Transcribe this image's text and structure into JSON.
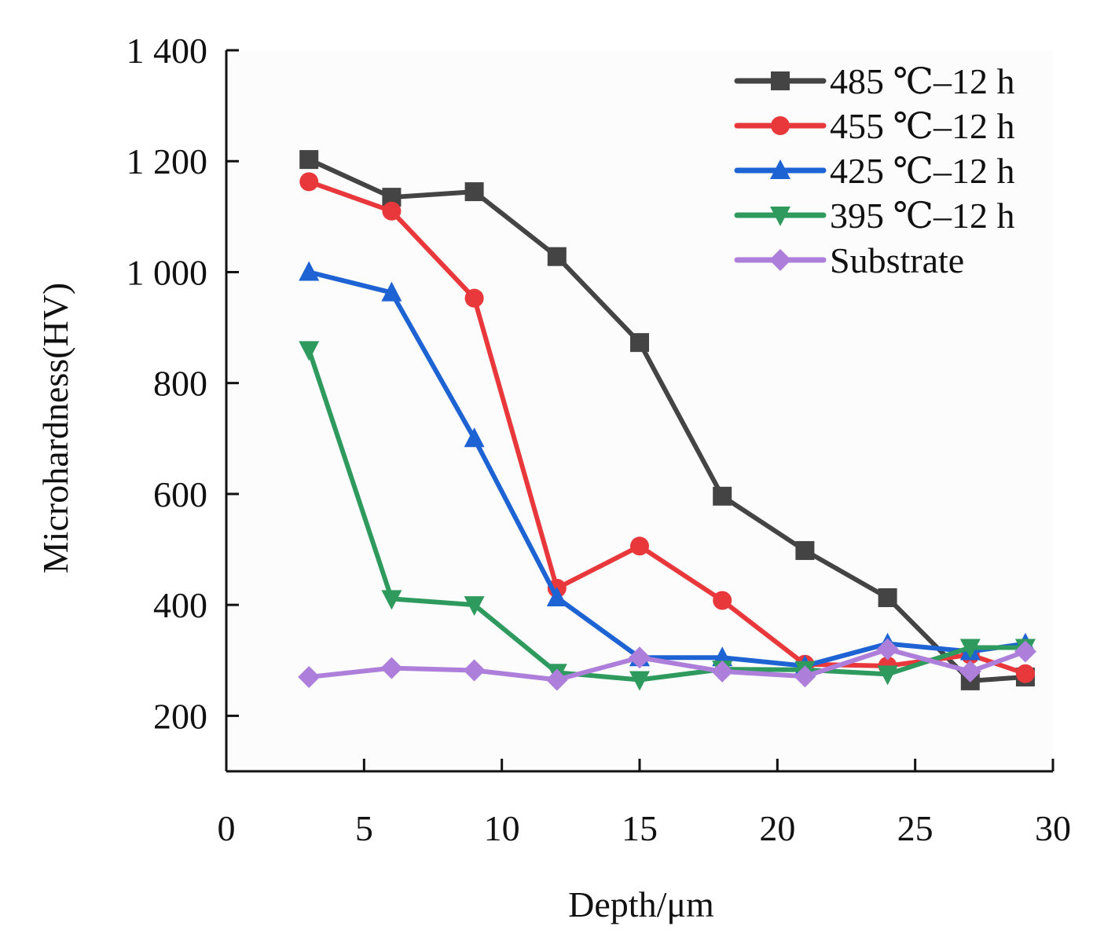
{
  "chart_data": {
    "type": "line",
    "title": "",
    "xlabel": "Depth/μm",
    "ylabel": "Microhardness(HV)",
    "xlim": [
      0,
      30
    ],
    "ylim": [
      100,
      1400
    ],
    "x_ticks": [
      0,
      5,
      10,
      15,
      20,
      25,
      30
    ],
    "x_tick_labels": [
      "0",
      "5",
      "10",
      "15",
      "20",
      "25",
      "30"
    ],
    "y_ticks": [
      200,
      400,
      600,
      800,
      1000,
      1200,
      1400
    ],
    "y_tick_labels": [
      "200",
      "400",
      "600",
      "800",
      "1 000",
      "1 200",
      "1 400"
    ],
    "grid": false,
    "legend_position": "top-right",
    "series": [
      {
        "name": "485 ℃–12 h",
        "color": "#444444",
        "marker": "square",
        "x": [
          3,
          6,
          9,
          12,
          15,
          18,
          21,
          24,
          27,
          29
        ],
        "y": [
          1203,
          1135,
          1145,
          1028,
          873,
          596,
          498,
          413,
          263,
          270
        ]
      },
      {
        "name": "455 ℃–12 h",
        "color": "#e8383b",
        "marker": "circle",
        "x": [
          3,
          6,
          9,
          12,
          15,
          18,
          21,
          24,
          27,
          29
        ],
        "y": [
          1163,
          1110,
          953,
          430,
          506,
          408,
          293,
          290,
          310,
          276
        ]
      },
      {
        "name": "425 ℃–12 h",
        "color": "#1e63d3",
        "marker": "triangle-up",
        "x": [
          3,
          6,
          9,
          12,
          15,
          18,
          21,
          24,
          27,
          29
        ],
        "y": [
          1000,
          963,
          700,
          413,
          305,
          305,
          290,
          330,
          316,
          330
        ]
      },
      {
        "name": "395 ℃–12 h",
        "color": "#2f9a5d",
        "marker": "triangle-down",
        "x": [
          3,
          6,
          9,
          12,
          15,
          18,
          21,
          24,
          27,
          29
        ],
        "y": [
          860,
          411,
          400,
          278,
          265,
          284,
          283,
          275,
          323,
          323
        ]
      },
      {
        "name": "Substrate",
        "color": "#ad7fdb",
        "marker": "diamond",
        "x": [
          3,
          6,
          9,
          12,
          15,
          18,
          21,
          24,
          27,
          29
        ],
        "y": [
          270,
          286,
          282,
          265,
          305,
          280,
          271,
          320,
          280,
          316
        ]
      }
    ]
  }
}
